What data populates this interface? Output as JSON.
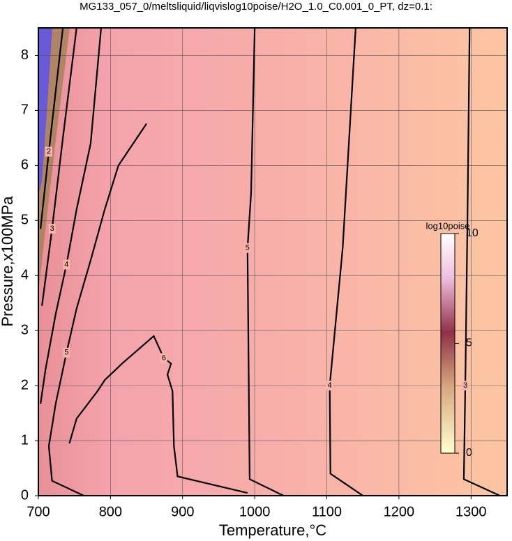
{
  "chart_data": {
    "type": "contour",
    "title": "MG133_057_0/meltsliquid/liqvislog10poise/H2O_1.0_C0.001_0_PT, dz=0.1:",
    "x_label": "Temperature,°C",
    "y_label": "Pressure,x100MPa",
    "xlim": [
      700,
      1350
    ],
    "ylim": [
      0,
      8.5
    ],
    "xticks": [
      700,
      800,
      900,
      1000,
      1100,
      1200,
      1300
    ],
    "yticks": [
      0,
      1,
      2,
      3,
      4,
      5,
      6,
      7,
      8
    ],
    "grid": true,
    "colorbar": {
      "label": "log10poise",
      "lim": [
        0,
        10
      ],
      "ticks": [
        0,
        5,
        10
      ]
    },
    "contours": [
      {
        "level": 3,
        "x": [
          1298,
          1295,
          1292,
          1290,
          1340
        ],
        "y": [
          8.5,
          5,
          2,
          0.3,
          0
        ]
      },
      {
        "level": 4,
        "x": [
          1140,
          1122,
          1104,
          1105,
          1150
        ],
        "y": [
          8.5,
          4.5,
          2,
          0.4,
          0
        ]
      },
      {
        "level": 5,
        "x": [
          1000,
          995,
          990,
          993,
          1040
        ],
        "y": [
          8.5,
          5.5,
          4.5,
          0.3,
          0
        ]
      },
      {
        "level": 6,
        "x": [
          743,
          753,
          782,
          792,
          816,
          860,
          874,
          884,
          879,
          886,
          888,
          893,
          990
        ],
        "y": [
          0.95,
          1.4,
          1.9,
          2.1,
          2.4,
          2.9,
          2.5,
          2.4,
          2.2,
          1.9,
          0.9,
          0.35,
          0.05
        ]
      },
      {
        "level": 5,
        "x": [
          850,
          811,
          792,
          773,
          753,
          739,
          724,
          714.5,
          719,
          763
        ],
        "y": [
          6.76,
          6.0,
          5.2,
          4.3,
          3.4,
          2.6,
          1.67,
          0.9,
          0.27,
          0
        ]
      },
      {
        "level": 4,
        "x": [
          787,
          772.5,
          753,
          739,
          724,
          710,
          703
        ],
        "y": [
          8.5,
          6.4,
          5.2,
          4.2,
          3.3,
          2.3,
          1.67
        ]
      },
      {
        "level": 3,
        "x": [
          753,
          734,
          719,
          705
        ],
        "y": [
          8.5,
          6.5,
          4.85,
          3.45
        ]
      },
      {
        "level": 2,
        "x": [
          734,
          714.5,
          703
        ],
        "y": [
          8.5,
          6.25,
          4.85
        ]
      }
    ]
  }
}
